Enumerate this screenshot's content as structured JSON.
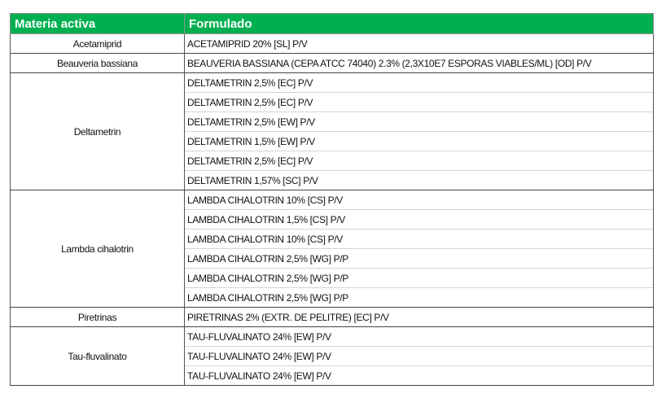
{
  "header": {
    "col1": "Materia activa",
    "col2": "Formulado"
  },
  "groups": [
    {
      "materia": "Acetamiprid",
      "formulados": [
        "ACETAMIPRID 20% [SL] P/V"
      ]
    },
    {
      "materia": "Beauveria bassiana",
      "formulados": [
        "BEAUVERIA BASSIANA (CEPA ATCC 74040) 2.3% (2,3X10E7 ESPORAS VIABLES/ML) [OD] P/V"
      ]
    },
    {
      "materia": "Deltametrin",
      "formulados": [
        "DELTAMETRIN 2,5% [EC] P/V",
        "DELTAMETRIN 2,5% [EC] P/V",
        "DELTAMETRIN 2,5% [EW] P/V",
        "DELTAMETRIN 1,5% [EW] P/V",
        "DELTAMETRIN 2,5% [EC] P/V",
        "DELTAMETRIN 1,57% [SC] P/V"
      ]
    },
    {
      "materia": "Lambda cihalotrin",
      "formulados": [
        "LAMBDA CIHALOTRIN 10% [CS] P/V",
        "LAMBDA CIHALOTRIN 1,5% [CS] P/V",
        "LAMBDA CIHALOTRIN 10% [CS] P/V",
        "LAMBDA CIHALOTRIN 2,5% [WG] P/P",
        "LAMBDA CIHALOTRIN 2,5% [WG] P/P",
        "LAMBDA CIHALOTRIN 2,5% [WG] P/P"
      ]
    },
    {
      "materia": "Piretrinas",
      "formulados": [
        "PIRETRINAS 2% (EXTR. DE PELITRE) [EC] P/V"
      ]
    },
    {
      "materia": "Tau-fluvalinato",
      "formulados": [
        "TAU-FLUVALINATO 24% [EW] P/V",
        "TAU-FLUVALINATO 24% [EW] P/V",
        "TAU-FLUVALINATO 24% [EW] P/V"
      ]
    }
  ]
}
